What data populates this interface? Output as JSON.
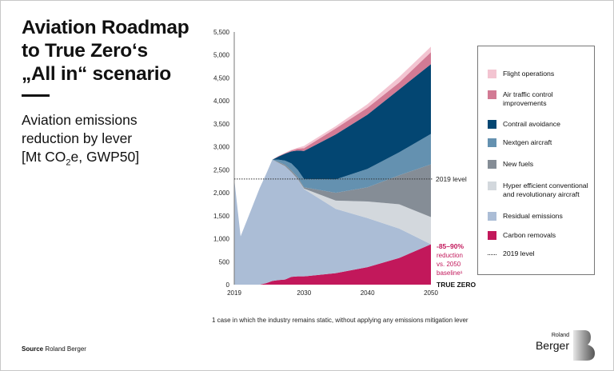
{
  "title_lines": [
    "Aviation Roadmap",
    "to True Zero‘s",
    "„All in“ scenario"
  ],
  "subtitle": {
    "line1": "Aviation emissions",
    "line2": "reduction by lever",
    "line3_pre": "[Mt CO",
    "line3_sub": "2",
    "line3_post": "e, GWP50]"
  },
  "annotation": {
    "pct": "-85–90%",
    "l1": "reduction",
    "l2": "vs. 2050",
    "l3": "baseline¹",
    "true_zero": "TRUE ZERO",
    "level_label": "2019 level"
  },
  "footnote": "1  case in which the industry remains static, without applying any emissions mitigation lever",
  "source": {
    "label": "Source",
    "text": "Roland Berger"
  },
  "logo": {
    "line1": "Roland",
    "line2": "Berger"
  },
  "colors": {
    "accent": "#c2185b"
  },
  "chart_data": {
    "type": "area",
    "stacked": true,
    "title": "",
    "xlabel": "",
    "ylabel": "",
    "xlim": [
      2019,
      2050
    ],
    "ylim": [
      0,
      5500
    ],
    "x_ticks": [
      "2019",
      "2030",
      "2040",
      "2050"
    ],
    "y_ticks": [
      "0",
      "500",
      "1,000",
      "1,500",
      "2,000",
      "2,500",
      "3,000",
      "3,500",
      "4,000",
      "4,500",
      "5,000",
      "5,500"
    ],
    "grid": false,
    "legend_position": "right",
    "reference_line": {
      "name": "2019 level",
      "value": 2300
    },
    "x": [
      2019,
      2020,
      2021,
      2022,
      2023,
      2024,
      2025,
      2026,
      2027,
      2028,
      2029,
      2030,
      2035,
      2040,
      2045,
      2050
    ],
    "series": [
      {
        "name": "Carbon removals",
        "color": "#c2185b",
        "values": [
          0,
          0,
          0,
          0,
          0,
          30,
          80,
          100,
          110,
          170,
          180,
          180,
          250,
          380,
          580,
          880
        ]
      },
      {
        "name": "Residual emissions",
        "color": "#abbdd6",
        "values": [
          2300,
          1050,
          1400,
          1750,
          2100,
          2370,
          2640,
          2550,
          2470,
          2280,
          2120,
          1900,
          1400,
          1070,
          640,
          0
        ]
      },
      {
        "name": "Hyper efficient conventional and revolutionary aircraft",
        "color": "#d3d8dd",
        "values": [
          0,
          0,
          0,
          0,
          0,
          0,
          0,
          0,
          0,
          0,
          0,
          10,
          180,
          360,
          530,
          590
        ]
      },
      {
        "name": "New fuels",
        "color": "#858d96",
        "values": [
          0,
          0,
          0,
          0,
          0,
          0,
          0,
          20,
          30,
          40,
          40,
          30,
          170,
          310,
          630,
          1150
        ]
      },
      {
        "name": "Nextgen aircraft",
        "color": "#6491b0",
        "values": [
          0,
          0,
          0,
          0,
          0,
          0,
          0,
          50,
          90,
          150,
          160,
          180,
          290,
          400,
          500,
          660
        ]
      },
      {
        "name": "Contrail avoidance",
        "color": "#034672",
        "values": [
          0,
          0,
          0,
          0,
          0,
          0,
          0,
          70,
          150,
          260,
          420,
          610,
          980,
          1180,
          1370,
          1520
        ]
      },
      {
        "name": "Air traffic control improvements",
        "color": "#d27a94",
        "values": [
          0,
          0,
          0,
          0,
          0,
          0,
          0,
          10,
          10,
          20,
          40,
          60,
          130,
          150,
          150,
          260
        ]
      },
      {
        "name": "Flight operations",
        "color": "#f3c4d1",
        "values": [
          0,
          0,
          0,
          0,
          0,
          0,
          0,
          5,
          10,
          15,
          20,
          50,
          50,
          80,
          120,
          120
        ]
      }
    ],
    "legend_order": [
      "Flight operations",
      "Air traffic control improvements",
      "Contrail avoidance",
      "Nextgen aircraft",
      "New fuels",
      "Hyper efficient conventional and revolutionary aircraft",
      "Residual emissions",
      "Carbon  removals",
      "2019 level"
    ]
  }
}
